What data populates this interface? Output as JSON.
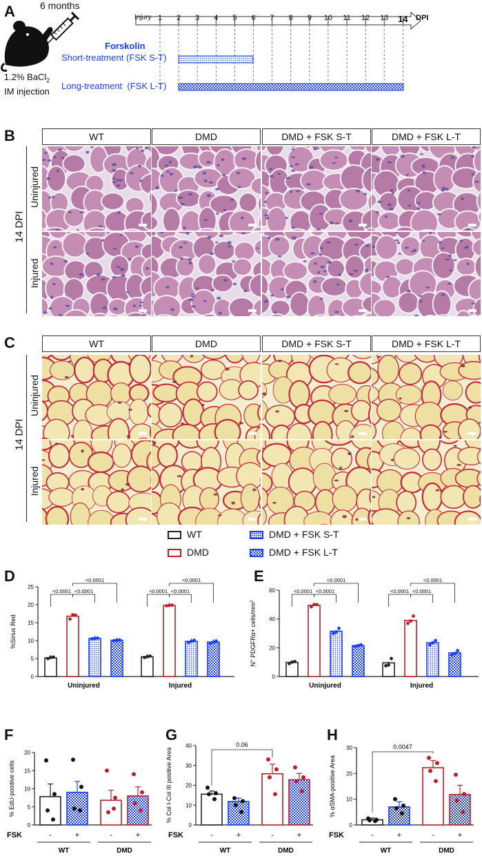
{
  "panels": {
    "a": "A",
    "b": "B",
    "c": "C",
    "d": "D",
    "e": "E",
    "f": "F",
    "g": "G",
    "h": "H"
  },
  "panel_a": {
    "age": "6 months",
    "injection_line1": "1.2% BaCl",
    "injection_sub": "2",
    "injection_line2": "IM injection",
    "drug": "Forskolin",
    "short_label": "Short-treatment (FSK S-T)",
    "long_label": "Long-treatment  (FSK L-T)",
    "timeline_start": "Injury",
    "timeline_days": [
      "1",
      "2",
      "3",
      "4",
      "5",
      "6",
      "7",
      "8",
      "9",
      "10",
      "11",
      "12",
      "13",
      "14"
    ],
    "timeline_unit": "DPI",
    "colors": {
      "blue": "#1a3cff",
      "short_fill": "#dfe6ff",
      "long_fill": "#2a46e6"
    }
  },
  "histology": {
    "columns": [
      "WT",
      "DMD",
      "DMD + FSK S-T",
      "DMD + FSK L-T"
    ],
    "rows": [
      "Uninjured",
      "Injured"
    ],
    "side_label": "14 DPI",
    "he_colors": {
      "bg": "#c9a8c8",
      "fiber": "#b77ba8",
      "nuclei": "#5a4b9e"
    },
    "sr_colors": {
      "bg": "#f2e9b8",
      "fiber": "#ece1a6",
      "collagen": "#c22a3e"
    }
  },
  "legend": {
    "items": [
      {
        "label": "WT",
        "color": "#222222",
        "pattern": "none"
      },
      {
        "label": "DMD",
        "color": "#b8202a",
        "pattern": "none"
      },
      {
        "label": "DMD + FSK S-T",
        "color": "#1a3cff",
        "pattern": "dots"
      },
      {
        "label": "DMD + FSK L-T",
        "color": "#1a3cff",
        "pattern": "check"
      }
    ]
  },
  "chart_data": [
    {
      "panel": "D",
      "type": "bar",
      "ylabel": "%Sirius Red",
      "ylim": [
        0,
        25
      ],
      "yticks": [
        0,
        5,
        10,
        15,
        20,
        25
      ],
      "categories": [
        "Uninjured",
        "Injured"
      ],
      "series": [
        {
          "name": "WT",
          "values": [
            5.2,
            5.5
          ],
          "points": [
            [
              5.0,
              5.3,
              5.4
            ],
            [
              5.3,
              5.5,
              5.7
            ]
          ]
        },
        {
          "name": "DMD",
          "values": [
            16.8,
            19.8
          ],
          "points": [
            [
              16.0,
              17.2,
              17.1
            ],
            [
              19.7,
              19.8,
              19.9
            ]
          ]
        },
        {
          "name": "DMD + FSK S-T",
          "values": [
            10.6,
            9.8
          ],
          "points": [
            [
              10.5,
              10.6,
              10.7
            ],
            [
              9.5,
              9.8,
              10.1
            ]
          ]
        },
        {
          "name": "DMD + FSK L-T",
          "values": [
            10.1,
            9.6
          ],
          "points": [
            [
              10.0,
              10.1,
              10.2
            ],
            [
              9.3,
              9.6,
              9.9
            ]
          ]
        }
      ],
      "annotations": [
        "<0.0001",
        "<0.0001",
        "<0.0001",
        "<0.0001",
        "<0.0001",
        "<0.0001"
      ]
    },
    {
      "panel": "E",
      "type": "bar",
      "ylabel": "N° PDGFRα+ cells/mm²",
      "ylim": [
        0,
        60
      ],
      "yticks": [
        0,
        20,
        40,
        60
      ],
      "categories": [
        "Uninjured",
        "Injured"
      ],
      "series": [
        {
          "name": "WT",
          "values": [
            9.8,
            9.5
          ],
          "points": [
            [
              9.0,
              10.0,
              10.4
            ],
            [
              7.5,
              8.0,
              12.5
            ]
          ]
        },
        {
          "name": "DMD",
          "values": [
            49.5,
            39.0
          ],
          "points": [
            [
              48.5,
              50.0,
              50.0
            ],
            [
              37.0,
              38.5,
              42.0
            ]
          ]
        },
        {
          "name": "DMD + FSK S-T",
          "values": [
            31.5,
            23.5
          ],
          "points": [
            [
              30.0,
              31.0,
              33.5
            ],
            [
              22.0,
              23.5,
              25.0
            ]
          ]
        },
        {
          "name": "DMD + FSK L-T",
          "values": [
            21.5,
            16.5
          ],
          "points": [
            [
              21.0,
              21.5,
              22.0
            ],
            [
              15.0,
              16.0,
              18.0
            ]
          ]
        }
      ],
      "annotations": [
        "<0.0001",
        "<0.0001",
        "<0.0001",
        "<0.0001",
        "<0.0001",
        "<0.0001"
      ]
    },
    {
      "panel": "F",
      "type": "bar",
      "ylabel": "% EdU-positive cells",
      "ylim": [
        0,
        20
      ],
      "yticks": [
        0,
        5,
        10,
        15,
        20
      ],
      "x_row": "FSK",
      "ticks": [
        "-",
        "+",
        "-",
        "+"
      ],
      "groups": [
        "WT",
        "DMD"
      ],
      "values": [
        7.8,
        9.0,
        6.8,
        8.0
      ],
      "errors": [
        3.5,
        3.0,
        2.8,
        2.5
      ],
      "points": [
        [
          17.8,
          8.5,
          4.0,
          1.5
        ],
        [
          18.0,
          10.5,
          4.5,
          4.0
        ],
        [
          15.0,
          7.5,
          3.5,
          4.5
        ],
        [
          14.0,
          9.0,
          6.0,
          4.0
        ]
      ],
      "colors": [
        "#222222",
        "#1a3cff",
        "#b8202a",
        "#b8202a"
      ]
    },
    {
      "panel": "G",
      "type": "bar",
      "ylabel": "% Col I-Col III positive Area",
      "ylim": [
        0,
        40
      ],
      "yticks": [
        0,
        10,
        20,
        30,
        40
      ],
      "x_row": "FSK",
      "ticks": [
        "-",
        "+",
        "-",
        "+"
      ],
      "groups": [
        "WT",
        "DMD"
      ],
      "values": [
        15.5,
        11.8,
        25.8,
        22.8
      ],
      "errors": [
        1.6,
        1.7,
        4.8,
        3.2
      ],
      "points": [
        [
          18.8,
          16.0,
          15.5,
          13.0
        ],
        [
          13.5,
          12.0,
          10.0,
          6.5
        ],
        [
          33.0,
          28.0,
          24.0,
          15.5
        ],
        [
          29.0,
          24.0,
          22.0,
          17.0
        ]
      ],
      "annotation": "0.06"
    },
    {
      "panel": "H",
      "type": "bar",
      "ylabel": "% αSMA-positive Area",
      "ylim": [
        0,
        30
      ],
      "yticks": [
        0,
        10,
        20,
        30
      ],
      "x_row": "FSK",
      "ticks": [
        "-",
        "+",
        "-",
        "+"
      ],
      "groups": [
        "WT",
        "DMD"
      ],
      "values": [
        2.0,
        7.0,
        22.2,
        11.8
      ],
      "errors": [
        0.7,
        2.0,
        2.8,
        3.6
      ],
      "points": [
        [
          2.5,
          2.0,
          1.8,
          1.5
        ],
        [
          10.0,
          7.5,
          6.5,
          4.5
        ],
        [
          26.0,
          24.0,
          21.0,
          17.0
        ],
        [
          19.5,
          12.0,
          9.5,
          5.0
        ]
      ],
      "annotation": "0.0047"
    }
  ]
}
